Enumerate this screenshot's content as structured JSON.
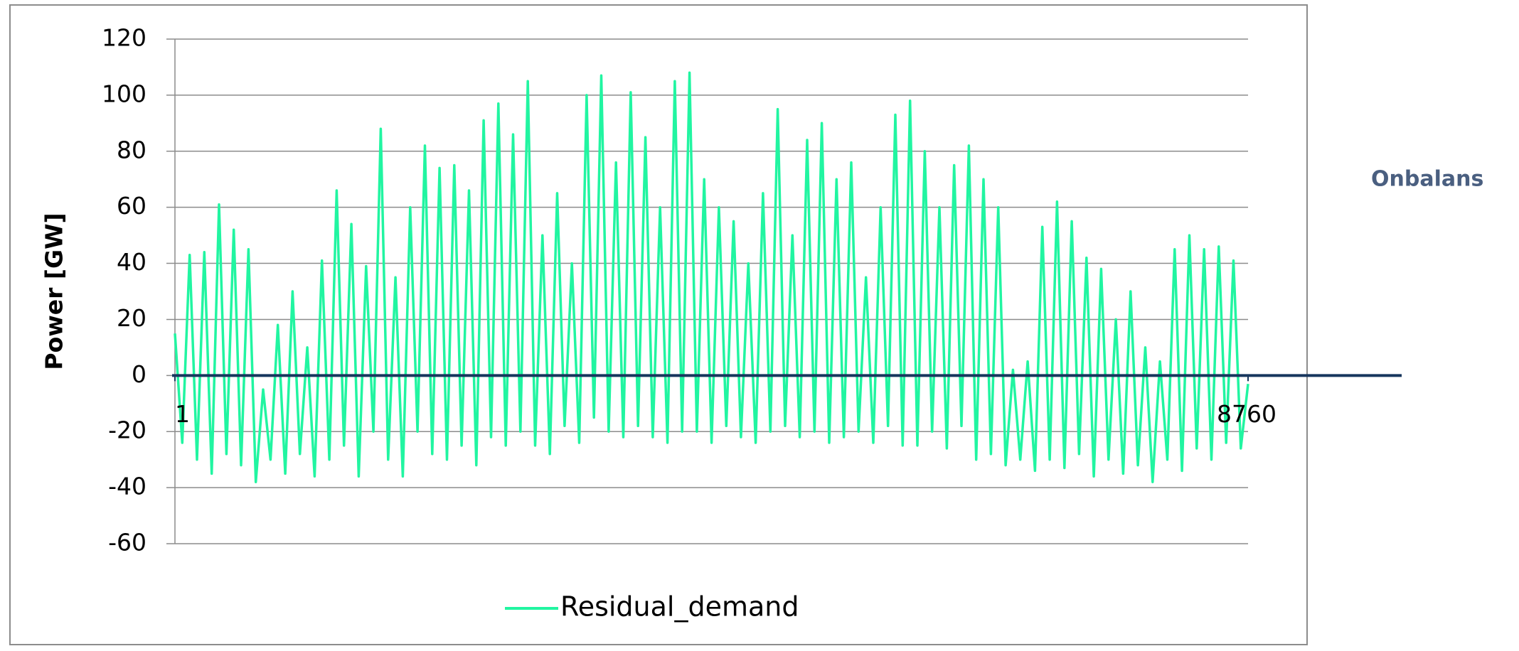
{
  "chart_data": {
    "type": "line",
    "ylabel": "Power [GW]",
    "annotation": "Onbalans",
    "x": [
      1,
      61,
      121,
      181,
      241,
      301,
      361,
      421,
      481,
      541,
      601,
      661,
      721,
      781,
      841,
      901,
      961,
      1021,
      1081,
      1141,
      1201,
      1261,
      1321,
      1381,
      1441,
      1501,
      1561,
      1621,
      1681,
      1741,
      1801,
      1861,
      1921,
      1981,
      2041,
      2101,
      2161,
      2221,
      2281,
      2341,
      2401,
      2461,
      2521,
      2581,
      2641,
      2701,
      2761,
      2821,
      2881,
      2941,
      3001,
      3061,
      3121,
      3181,
      3241,
      3301,
      3361,
      3421,
      3481,
      3541,
      3601,
      3661,
      3721,
      3781,
      3841,
      3901,
      3961,
      4021,
      4081,
      4141,
      4201,
      4261,
      4321,
      4381,
      4441,
      4501,
      4561,
      4621,
      4681,
      4741,
      4801,
      4861,
      4921,
      4981,
      5041,
      5101,
      5161,
      5221,
      5281,
      5341,
      5401,
      5461,
      5521,
      5581,
      5641,
      5701,
      5761,
      5821,
      5881,
      5941,
      6001,
      6061,
      6121,
      6181,
      6241,
      6301,
      6361,
      6421,
      6481,
      6541,
      6601,
      6661,
      6721,
      6781,
      6841,
      6901,
      6961,
      7021,
      7081,
      7141,
      7201,
      7261,
      7321,
      7381,
      7441,
      7501,
      7561,
      7621,
      7681,
      7741,
      7801,
      7861,
      7921,
      7981,
      8041,
      8101,
      8161,
      8221,
      8281,
      8341,
      8401,
      8461,
      8521,
      8581,
      8641,
      8701,
      8760
    ],
    "series": [
      {
        "name": "Residual_demand",
        "color": "#21f5a1",
        "values": [
          15,
          -24,
          43,
          -30,
          44,
          -35,
          61,
          -28,
          52,
          -32,
          45,
          -38,
          -5,
          -30,
          18,
          -35,
          30,
          -28,
          10,
          -36,
          41,
          -30,
          66,
          -25,
          54,
          -36,
          39,
          -20,
          88,
          -30,
          35,
          -36,
          60,
          -20,
          82,
          -28,
          74,
          -30,
          75,
          -25,
          66,
          -32,
          91,
          -22,
          97,
          -25,
          86,
          -20,
          105,
          -25,
          50,
          -28,
          65,
          -18,
          40,
          -24,
          100,
          -15,
          107,
          -20,
          76,
          -22,
          101,
          -18,
          85,
          -22,
          60,
          -24,
          105,
          -20,
          108,
          -20,
          70,
          -24,
          60,
          -18,
          55,
          -22,
          40,
          -24,
          65,
          -20,
          95,
          -18,
          50,
          -22,
          84,
          -20,
          90,
          -24,
          70,
          -22,
          76,
          -20,
          35,
          -24,
          60,
          -18,
          93,
          -25,
          98,
          -25,
          80,
          -20,
          60,
          -26,
          75,
          -18,
          82,
          -30,
          70,
          -28,
          60,
          -32,
          2,
          -30,
          5,
          -34,
          53,
          -30,
          62,
          -33,
          55,
          -28,
          42,
          -36,
          38,
          -30,
          20,
          -35,
          30,
          -32,
          10,
          -38,
          5,
          -30,
          45,
          -34,
          50,
          -26,
          45,
          -30,
          46,
          -24,
          41,
          -26,
          -3
        ]
      }
    ],
    "xlim": [
      1,
      8760
    ],
    "xticks": [
      1,
      8760
    ],
    "ylim": [
      -60,
      120
    ],
    "yticks": [
      -60,
      -40,
      -20,
      0,
      20,
      40,
      60,
      80,
      100,
      120
    ],
    "grid": true,
    "axis_line_color": "#17365d"
  }
}
